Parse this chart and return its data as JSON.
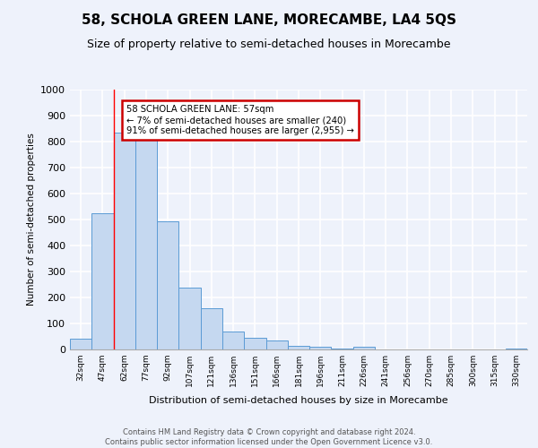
{
  "title": "58, SCHOLA GREEN LANE, MORECAMBE, LA4 5QS",
  "subtitle": "Size of property relative to semi-detached houses in Morecambe",
  "xlabel": "Distribution of semi-detached houses by size in Morecambe",
  "ylabel": "Number of semi-detached properties",
  "categories": [
    "32sqm",
    "47sqm",
    "62sqm",
    "77sqm",
    "92sqm",
    "107sqm",
    "121sqm",
    "136sqm",
    "151sqm",
    "166sqm",
    "181sqm",
    "196sqm",
    "211sqm",
    "226sqm",
    "241sqm",
    "256sqm",
    "270sqm",
    "285sqm",
    "300sqm",
    "315sqm",
    "330sqm"
  ],
  "values": [
    43,
    523,
    833,
    815,
    492,
    237,
    160,
    70,
    46,
    33,
    15,
    9,
    5,
    10,
    1,
    0,
    0,
    0,
    0,
    0,
    5
  ],
  "bar_color": "#c5d8f0",
  "bar_edge_color": "#5b9bd5",
  "red_line_x": 1.5,
  "annotation_text": "58 SCHOLA GREEN LANE: 57sqm\n← 7% of semi-detached houses are smaller (240)\n91% of semi-detached houses are larger (2,955) →",
  "annotation_box_color": "#ffffff",
  "annotation_box_edge_color": "#cc0000",
  "footer_line1": "Contains HM Land Registry data © Crown copyright and database right 2024.",
  "footer_line2": "Contains public sector information licensed under the Open Government Licence v3.0.",
  "ylim": [
    0,
    1000
  ],
  "background_color": "#eef2fb",
  "plot_bg_color": "#eef2fb",
  "grid_color": "#ffffff",
  "title_fontsize": 11,
  "subtitle_fontsize": 9
}
